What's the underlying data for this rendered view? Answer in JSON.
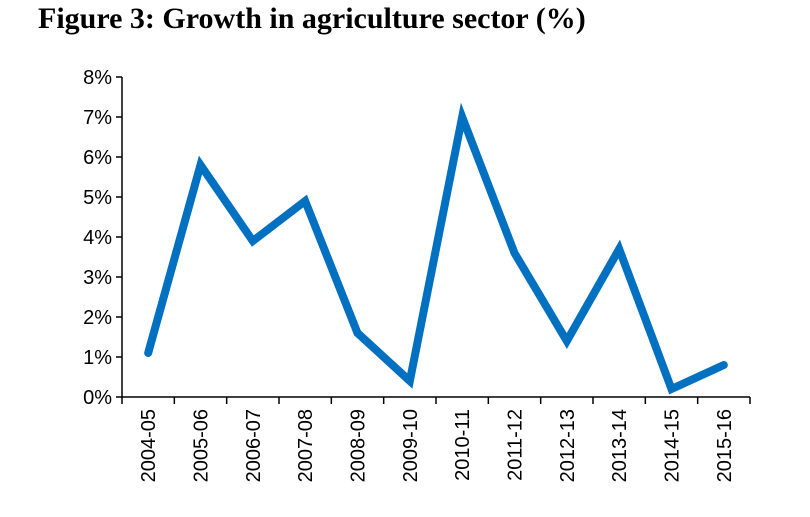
{
  "chart_data": {
    "type": "line",
    "title": "Figure 3: Growth in agriculture sector (%)",
    "xlabel": "",
    "ylabel": "",
    "categories": [
      "2004-05",
      "2005-06",
      "2006-07",
      "2007-08",
      "2008-09",
      "2009-10",
      "2010-11",
      "2011-12",
      "2012-13",
      "2013-14",
      "2014-15",
      "2015-16"
    ],
    "series": [
      {
        "values": [
          1.1,
          5.8,
          3.9,
          4.9,
          1.6,
          0.4,
          7.0,
          3.6,
          1.4,
          3.7,
          0.2,
          0.8
        ],
        "color": "#0070c0"
      }
    ],
    "ylim": [
      0,
      8
    ],
    "yticks": [
      "0%",
      "1%",
      "2%",
      "3%",
      "4%",
      "5%",
      "6%",
      "7%",
      "8%"
    ],
    "grid": false,
    "legend": "none"
  }
}
